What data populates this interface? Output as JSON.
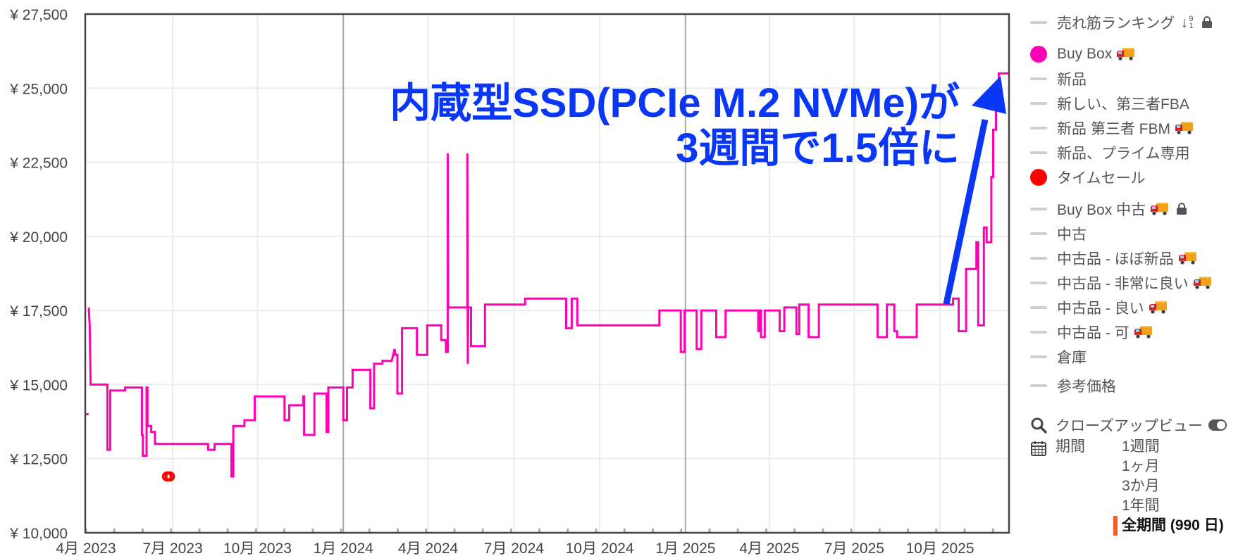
{
  "chart_data": {
    "type": "line",
    "subtype": "step",
    "title": "",
    "annotation": {
      "line1": "内蔵型SSD(PCIe M.2 NVMe)が",
      "line2": "3週間で1.5倍に",
      "color": "#0a36f5"
    },
    "xlabel": "",
    "ylabel": "",
    "ylim": [
      10000,
      27500
    ],
    "y_ticks": [
      10000,
      12500,
      15000,
      17500,
      20000,
      22500,
      25000,
      27500
    ],
    "y_tick_labels": [
      "¥ 10,000",
      "¥ 12,500",
      "¥ 15,000",
      "¥ 17,500",
      "¥ 20,000",
      "¥ 22,500",
      "¥ 25,000",
      "¥ 27,500"
    ],
    "x_range_days": 990,
    "x_tick_labels": [
      "4月 2023",
      "7月 2023",
      "10月 2023",
      "1月 2024",
      "4月 2024",
      "7月 2024",
      "10月 2024",
      "1月 2025",
      "4月 2025",
      "7月 2025",
      "10月 2025"
    ],
    "x_tick_days": [
      0,
      93,
      184,
      276,
      367,
      459,
      551,
      643,
      733,
      824,
      916
    ],
    "year_boundaries_days": [
      276,
      643
    ],
    "grid": true,
    "legend_position": "right",
    "series": [
      {
        "name": "Buy Box",
        "color": "#ff00b4",
        "points_day_price": [
          [
            3,
            17600
          ],
          [
            4,
            17000
          ],
          [
            4.5,
            16000
          ],
          [
            5,
            15000
          ],
          [
            23,
            15000
          ],
          [
            23,
            12800
          ],
          [
            26,
            12800
          ],
          [
            26,
            14800
          ],
          [
            42,
            14800
          ],
          [
            42,
            14900
          ],
          [
            60,
            14900
          ],
          [
            60,
            13300
          ],
          [
            61,
            13300
          ],
          [
            61,
            12600
          ],
          [
            65,
            12600
          ],
          [
            65,
            14900
          ],
          [
            66,
            14900
          ],
          [
            66,
            13600
          ],
          [
            70,
            13600
          ],
          [
            70,
            13400
          ],
          [
            74,
            13400
          ],
          [
            74,
            13000
          ],
          [
            131,
            13000
          ],
          [
            131,
            12800
          ],
          [
            138,
            12800
          ],
          [
            138,
            13000
          ],
          [
            156,
            13000
          ],
          [
            156,
            11900
          ],
          [
            158,
            11900
          ],
          [
            158,
            13600
          ],
          [
            170,
            13600
          ],
          [
            170,
            13800
          ],
          [
            181,
            13800
          ],
          [
            181,
            14600
          ],
          [
            213,
            14600
          ],
          [
            213,
            13800
          ],
          [
            218,
            13800
          ],
          [
            218,
            14300
          ],
          [
            233,
            14300
          ],
          [
            233,
            14600
          ],
          [
            234,
            14600
          ],
          [
            234,
            13300
          ],
          [
            245,
            13300
          ],
          [
            245,
            14700
          ],
          [
            258,
            14700
          ],
          [
            258,
            13400
          ],
          [
            260,
            13400
          ],
          [
            260,
            14900
          ],
          [
            276,
            14900
          ],
          [
            276,
            13800
          ],
          [
            280,
            13800
          ],
          [
            280,
            14900
          ],
          [
            286,
            14900
          ],
          [
            286,
            15500
          ],
          [
            305,
            15500
          ],
          [
            305,
            14200
          ],
          [
            309,
            14200
          ],
          [
            309,
            15700
          ],
          [
            318,
            15700
          ],
          [
            318,
            15800
          ],
          [
            328,
            15800
          ],
          [
            331,
            16200
          ],
          [
            332,
            16000
          ],
          [
            334,
            16000
          ],
          [
            334,
            14700
          ],
          [
            339,
            14700
          ],
          [
            339,
            16900
          ],
          [
            355,
            16900
          ],
          [
            355,
            16000
          ],
          [
            366,
            16000
          ],
          [
            366,
            17000
          ],
          [
            381,
            17000
          ],
          [
            381,
            16500
          ],
          [
            386,
            16500
          ],
          [
            386,
            16100
          ],
          [
            388,
            16100
          ],
          [
            388,
            22800
          ],
          [
            388.5,
            17600
          ],
          [
            409,
            17600
          ],
          [
            409,
            22800
          ],
          [
            409.5,
            15700
          ],
          [
            410,
            17600
          ],
          [
            413,
            17600
          ],
          [
            413,
            16300
          ],
          [
            428,
            16300
          ],
          [
            428,
            17700
          ],
          [
            471,
            17700
          ],
          [
            471,
            17900
          ],
          [
            515,
            17900
          ],
          [
            515,
            16900
          ],
          [
            521,
            16900
          ],
          [
            521,
            17900
          ],
          [
            527,
            17900
          ],
          [
            527,
            17000
          ],
          [
            615,
            17000
          ],
          [
            615,
            17500
          ],
          [
            638,
            17500
          ],
          [
            638,
            16100
          ],
          [
            642,
            16100
          ],
          [
            642,
            17500
          ],
          [
            655,
            17500
          ],
          [
            655,
            16200
          ],
          [
            660,
            16200
          ],
          [
            660,
            17500
          ],
          [
            676,
            17500
          ],
          [
            676,
            16600
          ],
          [
            686,
            16600
          ],
          [
            686,
            17500
          ],
          [
            721,
            17500
          ],
          [
            721,
            16800
          ],
          [
            722,
            16800
          ],
          [
            722,
            17500
          ],
          [
            724,
            17500
          ],
          [
            724,
            16600
          ],
          [
            728,
            16600
          ],
          [
            728,
            17500
          ],
          [
            744,
            17500
          ],
          [
            744,
            16800
          ],
          [
            749,
            16800
          ],
          [
            749,
            17600
          ],
          [
            762,
            17600
          ],
          [
            762,
            16700
          ],
          [
            765,
            16700
          ],
          [
            765,
            17700
          ],
          [
            775,
            17700
          ],
          [
            775,
            16600
          ],
          [
            786,
            16600
          ],
          [
            786,
            17700
          ],
          [
            849,
            17700
          ],
          [
            849,
            16600
          ],
          [
            859,
            16600
          ],
          [
            859,
            17700
          ],
          [
            867,
            17700
          ],
          [
            867,
            16800
          ],
          [
            870,
            16800
          ],
          [
            870,
            16600
          ],
          [
            891,
            16600
          ],
          [
            891,
            17700
          ],
          [
            930,
            17700
          ],
          [
            930,
            17900
          ],
          [
            936,
            17900
          ],
          [
            936,
            16800
          ],
          [
            944,
            16800
          ],
          [
            944,
            18900
          ],
          [
            955,
            18900
          ],
          [
            955,
            19800
          ],
          [
            957,
            19800
          ],
          [
            957,
            17000
          ],
          [
            963,
            17000
          ],
          [
            963,
            20300
          ],
          [
            966,
            20300
          ],
          [
            966,
            19800
          ],
          [
            971,
            19800
          ],
          [
            971,
            22000
          ],
          [
            973,
            22000
          ],
          [
            973,
            23600
          ],
          [
            976,
            23600
          ],
          [
            976,
            24400
          ],
          [
            979,
            24400
          ],
          [
            979,
            25500
          ],
          [
            990,
            25500
          ]
        ]
      },
      {
        "name": "タイムセール",
        "color": "#ff0000",
        "points_day_price": [
          [
            87,
            11900
          ],
          [
            90,
            11900
          ]
        ]
      },
      {
        "name": "isolated-point",
        "color": "#ff00b4",
        "points_day_price": [
          [
            0.5,
            14000
          ]
        ]
      }
    ]
  },
  "y_axis": {
    "labels": [
      "¥ 27,500",
      "¥ 25,000",
      "¥ 22,500",
      "¥ 20,000",
      "¥ 17,500",
      "¥ 15,000",
      "¥ 12,500",
      "¥ 10,000"
    ]
  },
  "legend": {
    "items": [
      {
        "label": "売れ筋ランキング",
        "marker": "dash",
        "icons": [
          "sort-numeric-icon",
          "lock-icon"
        ]
      },
      {
        "label": "Buy Box",
        "marker": "dot",
        "color": "#ff00b4",
        "icons": [
          "truck-icon"
        ]
      },
      {
        "label": "新品",
        "marker": "dash"
      },
      {
        "label": "新しい、第三者FBA",
        "marker": "dash"
      },
      {
        "label": "新品 第三者 FBM",
        "marker": "dash",
        "icons": [
          "truck-icon"
        ]
      },
      {
        "label": "新品、プライム専用",
        "marker": "dash"
      },
      {
        "label": "タイムセール",
        "marker": "dot",
        "color": "#ff0000"
      },
      {
        "label": "Buy Box 中古",
        "marker": "dash",
        "icons": [
          "truck-icon",
          "lock-icon"
        ]
      },
      {
        "label": "中古",
        "marker": "dash"
      },
      {
        "label": "中古品 - ほぼ新品",
        "marker": "dash",
        "icons": [
          "truck-icon"
        ]
      },
      {
        "label": "中古品 - 非常に良い",
        "marker": "dash",
        "icons": [
          "truck-icon"
        ]
      },
      {
        "label": "中古品 - 良い",
        "marker": "dash",
        "icons": [
          "truck-icon"
        ]
      },
      {
        "label": "中古品 - 可",
        "marker": "dash",
        "icons": [
          "truck-icon"
        ]
      },
      {
        "label": "倉庫",
        "marker": "dash"
      },
      {
        "label": "参考価格",
        "marker": "dash"
      }
    ],
    "sort_icon_digits": [
      "9",
      "1"
    ]
  },
  "tools": {
    "closeup_label": "クローズアップビュー",
    "closeup_toggle": "on",
    "period_label": "期間",
    "periods": [
      "1週間",
      "1ヶ月",
      "3か月",
      "1年間",
      "全期間 (990 日)"
    ],
    "active_period": "全期間 (990 日)"
  },
  "colors": {
    "buybox": "#ff00b4",
    "timesale": "#ff0000",
    "annotation": "#0a36f5",
    "active_period_bar": "#ff5a1f"
  }
}
